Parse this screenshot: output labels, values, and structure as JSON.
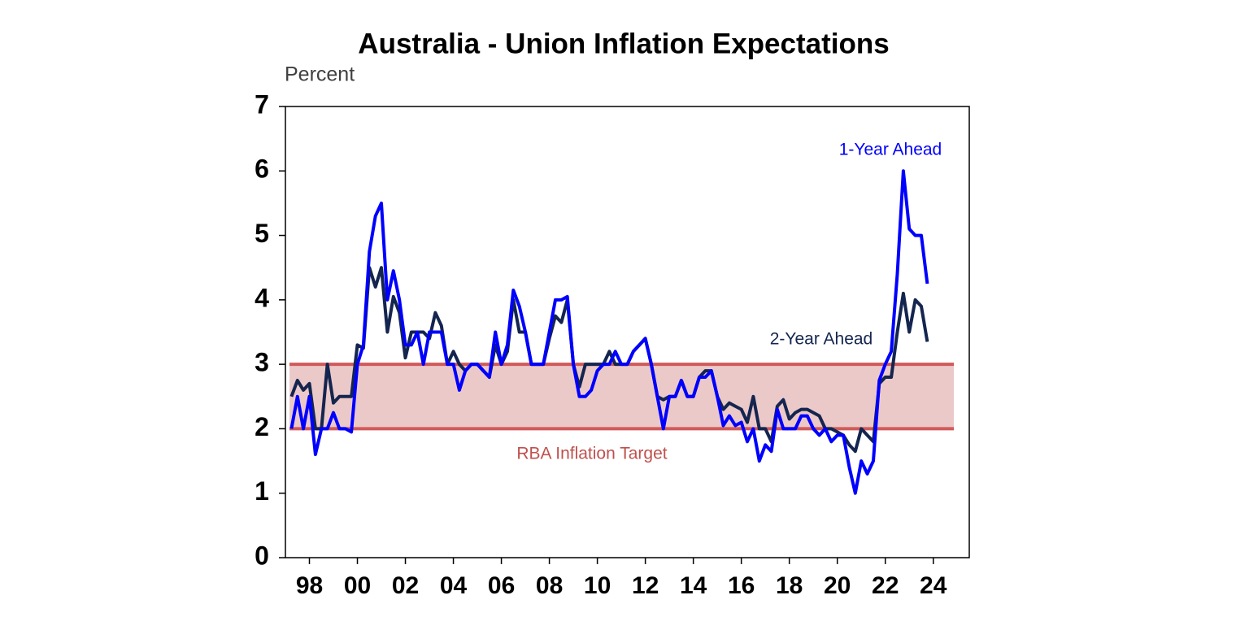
{
  "chart_data": {
    "type": "line",
    "title": "Australia - Union Inflation Expectations",
    "y_axis_label": "Percent",
    "x": [
      1997.25,
      1997.5,
      1997.75,
      1998,
      1998.25,
      1998.5,
      1998.75,
      1999,
      1999.25,
      1999.5,
      1999.75,
      2000,
      2000.25,
      2000.5,
      2000.75,
      2001,
      2001.25,
      2001.5,
      2001.75,
      2002,
      2002.25,
      2002.5,
      2002.75,
      2003,
      2003.25,
      2003.5,
      2003.75,
      2004,
      2004.25,
      2004.5,
      2004.75,
      2005,
      2005.25,
      2005.5,
      2005.75,
      2006,
      2006.25,
      2006.5,
      2006.75,
      2007,
      2007.25,
      2007.5,
      2007.75,
      2008,
      2008.25,
      2008.5,
      2008.75,
      2009,
      2009.25,
      2009.5,
      2009.75,
      2010,
      2010.25,
      2010.5,
      2010.75,
      2011,
      2011.25,
      2011.5,
      2011.75,
      2012,
      2012.25,
      2012.5,
      2012.75,
      2013,
      2013.25,
      2013.5,
      2013.75,
      2014,
      2014.25,
      2014.5,
      2014.75,
      2015,
      2015.25,
      2015.5,
      2015.75,
      2016,
      2016.25,
      2016.5,
      2016.75,
      2017,
      2017.25,
      2017.5,
      2017.75,
      2018,
      2018.25,
      2018.5,
      2018.75,
      2019,
      2019.25,
      2019.5,
      2019.75,
      2020,
      2020.25,
      2020.5,
      2020.75,
      2021,
      2021.25,
      2021.5,
      2021.75,
      2022,
      2022.25,
      2022.5,
      2022.75,
      2023,
      2023.25,
      2023.5,
      2023.75
    ],
    "series": [
      {
        "name": "1-Year Ahead",
        "color": "#0000ff",
        "values": [
          2.0,
          2.5,
          2.0,
          2.5,
          1.6,
          2.0,
          2.0,
          2.25,
          2.0,
          2.0,
          1.95,
          3.0,
          3.3,
          4.75,
          5.3,
          5.5,
          4.0,
          4.45,
          4.0,
          3.3,
          3.3,
          3.5,
          3.0,
          3.5,
          3.5,
          3.5,
          3.0,
          3.0,
          2.6,
          2.9,
          3.0,
          3.0,
          2.9,
          2.8,
          3.5,
          3.0,
          3.3,
          4.15,
          3.9,
          3.5,
          3.0,
          3.0,
          3.0,
          3.5,
          4.0,
          4.0,
          4.05,
          3.0,
          2.5,
          2.5,
          2.6,
          2.9,
          3.0,
          3.0,
          3.2,
          3.0,
          3.0,
          3.2,
          3.3,
          3.4,
          3.0,
          2.5,
          2.0,
          2.5,
          2.5,
          2.75,
          2.5,
          2.5,
          2.8,
          2.8,
          2.9,
          2.5,
          2.05,
          2.2,
          2.05,
          2.1,
          1.8,
          2.0,
          1.5,
          1.75,
          1.65,
          2.3,
          2.0,
          2.0,
          2.0,
          2.2,
          2.2,
          2.0,
          1.9,
          2.0,
          1.8,
          1.9,
          1.9,
          1.4,
          1.0,
          1.5,
          1.3,
          1.5,
          2.75,
          3.0,
          3.2,
          4.4,
          6.0,
          5.1,
          5.0,
          5.0,
          4.25
        ]
      },
      {
        "name": "2-Year Ahead",
        "color": "#14254f",
        "values": [
          2.5,
          2.75,
          2.6,
          2.7,
          2.0,
          2.0,
          3.0,
          2.4,
          2.5,
          2.5,
          2.5,
          3.3,
          3.25,
          4.5,
          4.2,
          4.5,
          3.5,
          4.05,
          3.8,
          3.1,
          3.5,
          3.5,
          3.5,
          3.4,
          3.8,
          3.6,
          3.0,
          3.2,
          3.0,
          2.9,
          3.0,
          3.0,
          2.9,
          2.8,
          3.3,
          3.0,
          3.2,
          4.0,
          3.5,
          3.5,
          3.0,
          3.0,
          3.0,
          3.4,
          3.75,
          3.65,
          4.0,
          3.0,
          2.65,
          3.0,
          3.0,
          3.0,
          3.0,
          3.2,
          3.0,
          3.0,
          3.0,
          3.2,
          3.3,
          3.4,
          3.0,
          2.5,
          2.45,
          2.5,
          2.5,
          2.75,
          2.5,
          2.5,
          2.8,
          2.9,
          2.9,
          2.5,
          2.3,
          2.4,
          2.35,
          2.3,
          2.1,
          2.5,
          2.0,
          2.0,
          1.8,
          2.35,
          2.45,
          2.15,
          2.25,
          2.3,
          2.3,
          2.25,
          2.2,
          2.0,
          2.0,
          1.95,
          1.9,
          1.75,
          1.65,
          2.0,
          1.9,
          1.8,
          2.7,
          2.8,
          2.8,
          3.5,
          4.1,
          3.5,
          4.0,
          3.9,
          3.35
        ]
      }
    ],
    "target_band": {
      "label": "RBA Inflation Target",
      "range": [
        2,
        3
      ],
      "line_color": "#d05a5a",
      "fill_color": "#ecc9c9"
    },
    "xlim": [
      1997,
      2025.5
    ],
    "xticks": [
      {
        "value": 1998,
        "label": "98"
      },
      {
        "value": 2000,
        "label": "00"
      },
      {
        "value": 2002,
        "label": "02"
      },
      {
        "value": 2004,
        "label": "04"
      },
      {
        "value": 2006,
        "label": "06"
      },
      {
        "value": 2008,
        "label": "08"
      },
      {
        "value": 2010,
        "label": "10"
      },
      {
        "value": 2012,
        "label": "12"
      },
      {
        "value": 2014,
        "label": "14"
      },
      {
        "value": 2016,
        "label": "16"
      },
      {
        "value": 2018,
        "label": "18"
      },
      {
        "value": 2020,
        "label": "20"
      },
      {
        "value": 2022,
        "label": "22"
      },
      {
        "value": 2024,
        "label": "24"
      }
    ],
    "ylim": [
      0,
      7
    ],
    "yticks": [
      0,
      1,
      2,
      3,
      4,
      5,
      6,
      7
    ],
    "grid": false
  }
}
